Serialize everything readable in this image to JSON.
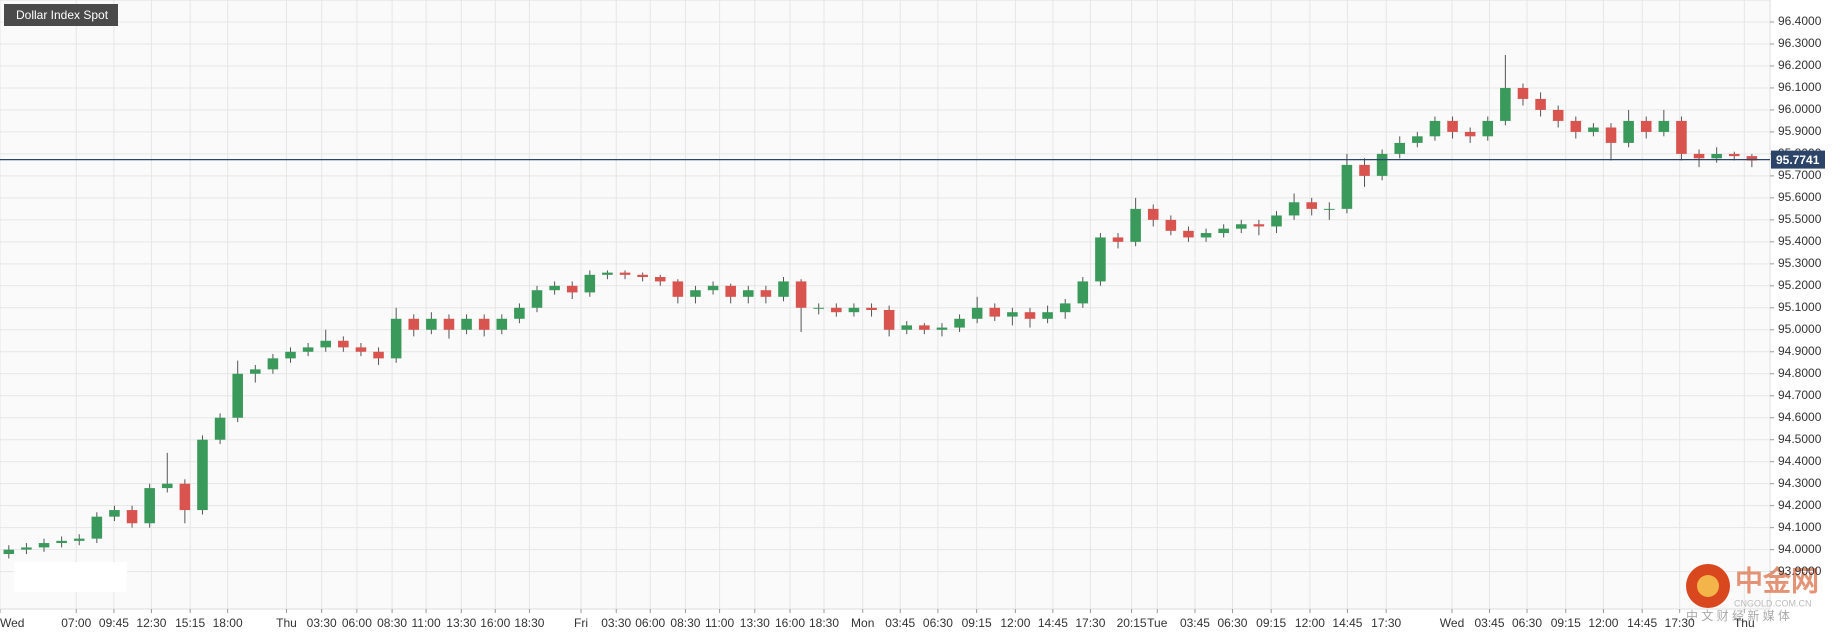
{
  "chart_data": {
    "type": "candlestick",
    "title": "Dollar Index Spot",
    "up_color": "#3a9a5b",
    "down_color": "#d9534f",
    "grid": true,
    "last_price": 95.7741,
    "last_price_color": "#2b4468",
    "xlim": [
      0,
      100.53
    ],
    "ylim": [
      93.73,
      96.5
    ],
    "xticks": [
      {
        "value": 0,
        "label": "Wed"
      },
      {
        "value": 4.33,
        "label": "07:00"
      },
      {
        "value": 6.47,
        "label": "09:45"
      },
      {
        "value": 8.6,
        "label": "12:30"
      },
      {
        "value": 10.8,
        "label": "15:15"
      },
      {
        "value": 12.93,
        "label": "18:00"
      },
      {
        "value": 16.27,
        "label": "Thu"
      },
      {
        "value": 18.27,
        "label": "03:30"
      },
      {
        "value": 20.27,
        "label": "06:00"
      },
      {
        "value": 22.27,
        "label": "08:30"
      },
      {
        "value": 24.2,
        "label": "11:00"
      },
      {
        "value": 26.2,
        "label": "13:30"
      },
      {
        "value": 28.13,
        "label": "16:00"
      },
      {
        "value": 30.07,
        "label": "18:30"
      },
      {
        "value": 33,
        "label": "Fri"
      },
      {
        "value": 35,
        "label": "03:30"
      },
      {
        "value": 36.93,
        "label": "06:00"
      },
      {
        "value": 38.93,
        "label": "08:30"
      },
      {
        "value": 40.87,
        "label": "11:00"
      },
      {
        "value": 42.87,
        "label": "13:30"
      },
      {
        "value": 44.87,
        "label": "16:00"
      },
      {
        "value": 46.8,
        "label": "18:30"
      },
      {
        "value": 49,
        "label": "Mon"
      },
      {
        "value": 51.13,
        "label": "03:45"
      },
      {
        "value": 53.27,
        "label": "06:30"
      },
      {
        "value": 55.47,
        "label": "09:15"
      },
      {
        "value": 57.67,
        "label": "12:00"
      },
      {
        "value": 59.8,
        "label": "14:45"
      },
      {
        "value": 61.93,
        "label": "17:30"
      },
      {
        "value": 64.27,
        "label": "20:15"
      },
      {
        "value": 65.73,
        "label": "Tue"
      },
      {
        "value": 67.87,
        "label": "03:45"
      },
      {
        "value": 70,
        "label": "06:30"
      },
      {
        "value": 72.2,
        "label": "09:15"
      },
      {
        "value": 74.4,
        "label": "12:00"
      },
      {
        "value": 76.53,
        "label": "14:45"
      },
      {
        "value": 78.73,
        "label": "17:30"
      },
      {
        "value": 82.47,
        "label": "Wed"
      },
      {
        "value": 84.6,
        "label": "03:45"
      },
      {
        "value": 86.73,
        "label": "06:30"
      },
      {
        "value": 88.93,
        "label": "09:15"
      },
      {
        "value": 91.07,
        "label": "12:00"
      },
      {
        "value": 93.27,
        "label": "14:45"
      },
      {
        "value": 95.4,
        "label": "17:30"
      },
      {
        "value": 99.07,
        "label": "Thu"
      }
    ],
    "yticks": [
      {
        "value": 93.9,
        "label": "93.9000"
      },
      {
        "value": 94.0,
        "label": "94.0000"
      },
      {
        "value": 94.1,
        "label": "94.1000"
      },
      {
        "value": 94.2,
        "label": "94.2000"
      },
      {
        "value": 94.3,
        "label": "94.3000"
      },
      {
        "value": 94.4,
        "label": "94.4000"
      },
      {
        "value": 94.5,
        "label": "94.5000"
      },
      {
        "value": 94.6,
        "label": "94.6000"
      },
      {
        "value": 94.7,
        "label": "94.7000"
      },
      {
        "value": 94.8,
        "label": "94.8000"
      },
      {
        "value": 94.9,
        "label": "94.9000"
      },
      {
        "value": 95.0,
        "label": "95.0000"
      },
      {
        "value": 95.1,
        "label": "95.1000"
      },
      {
        "value": 95.2,
        "label": "95.2000"
      },
      {
        "value": 95.3,
        "label": "95.3000"
      },
      {
        "value": 95.4,
        "label": "95.4000"
      },
      {
        "value": 95.5,
        "label": "95.5000"
      },
      {
        "value": 95.6,
        "label": "95.6000"
      },
      {
        "value": 95.7,
        "label": "95.7000"
      },
      {
        "value": 95.8,
        "label": "95.8000"
      },
      {
        "value": 95.9,
        "label": "95.9000"
      },
      {
        "value": 96.0,
        "label": "96.0000"
      },
      {
        "value": 96.1,
        "label": "96.1000"
      },
      {
        "value": 96.2,
        "label": "96.2000"
      },
      {
        "value": 96.3,
        "label": "96.3000"
      },
      {
        "value": 96.4,
        "label": "96.4000"
      }
    ],
    "open": [
      93.98,
      94.0,
      94.01,
      94.03,
      94.04,
      94.05,
      94.15,
      94.18,
      94.12,
      94.28,
      94.3,
      94.18,
      94.5,
      94.6,
      94.8,
      94.82,
      94.87,
      94.9,
      94.92,
      94.95,
      94.92,
      94.9,
      94.87,
      95.05,
      95.0,
      95.05,
      95.0,
      95.05,
      95.0,
      95.05,
      95.1,
      95.18,
      95.2,
      95.17,
      95.25,
      95.26,
      95.25,
      95.24,
      95.22,
      95.15,
      95.18,
      95.2,
      95.15,
      95.18,
      95.15,
      95.22,
      95.1,
      95.1,
      95.08,
      95.1,
      95.09,
      95.0,
      95.02,
      95.0,
      95.01,
      95.05,
      95.1,
      95.06,
      95.08,
      95.05,
      95.08,
      95.12,
      95.22,
      95.42,
      95.4,
      95.55,
      95.5,
      95.45,
      95.42,
      95.44,
      95.46,
      95.48,
      95.47,
      95.52,
      95.58,
      95.55,
      95.55,
      95.75,
      95.7,
      95.8,
      95.85,
      95.88,
      95.95,
      95.9,
      95.88,
      95.95,
      96.1,
      96.05,
      96.0,
      95.95,
      95.9,
      95.92,
      95.85,
      95.95,
      95.9,
      95.95,
      95.8,
      95.78,
      95.8,
      95.79
    ],
    "high": [
      94.02,
      94.03,
      94.05,
      94.06,
      94.07,
      94.17,
      94.2,
      94.2,
      94.3,
      94.44,
      94.32,
      94.52,
      94.62,
      94.86,
      94.84,
      94.89,
      94.92,
      94.94,
      95.0,
      94.97,
      94.94,
      94.92,
      95.1,
      95.07,
      95.08,
      95.07,
      95.07,
      95.07,
      95.07,
      95.12,
      95.2,
      95.22,
      95.22,
      95.27,
      95.27,
      95.27,
      95.26,
      95.25,
      95.23,
      95.2,
      95.22,
      95.21,
      95.2,
      95.2,
      95.24,
      95.23,
      95.12,
      95.12,
      95.12,
      95.12,
      95.11,
      95.04,
      95.03,
      95.03,
      95.07,
      95.15,
      95.12,
      95.1,
      95.1,
      95.11,
      95.14,
      95.24,
      95.44,
      95.44,
      95.6,
      95.57,
      95.52,
      95.47,
      95.46,
      95.48,
      95.5,
      95.5,
      95.54,
      95.62,
      95.6,
      95.58,
      95.8,
      95.78,
      95.82,
      95.88,
      95.9,
      95.97,
      95.97,
      95.92,
      95.97,
      96.25,
      96.12,
      96.08,
      96.02,
      95.97,
      95.94,
      95.94,
      96.0,
      95.97,
      96.0,
      95.97,
      95.82,
      95.83,
      95.81,
      95.8
    ],
    "low": [
      93.96,
      93.98,
      93.99,
      94.01,
      94.02,
      94.03,
      94.13,
      94.1,
      94.1,
      94.26,
      94.12,
      94.16,
      94.48,
      94.58,
      94.76,
      94.8,
      94.85,
      94.88,
      94.9,
      94.9,
      94.88,
      94.84,
      94.85,
      94.97,
      94.98,
      94.96,
      94.98,
      94.97,
      94.98,
      95.03,
      95.08,
      95.16,
      95.14,
      95.15,
      95.23,
      95.23,
      95.22,
      95.2,
      95.12,
      95.12,
      95.16,
      95.12,
      95.12,
      95.12,
      95.13,
      94.99,
      95.07,
      95.06,
      95.06,
      95.06,
      94.97,
      94.98,
      94.98,
      94.97,
      94.99,
      95.03,
      95.04,
      95.02,
      95.01,
      95.03,
      95.05,
      95.1,
      95.2,
      95.37,
      95.38,
      95.47,
      95.43,
      95.4,
      95.4,
      95.42,
      95.44,
      95.43,
      95.44,
      95.5,
      95.52,
      95.5,
      95.53,
      95.65,
      95.68,
      95.78,
      95.83,
      95.86,
      95.87,
      95.85,
      95.86,
      95.93,
      96.02,
      95.97,
      95.92,
      95.87,
      95.88,
      95.77,
      95.83,
      95.87,
      95.88,
      95.77,
      95.74,
      95.76,
      95.77,
      95.74
    ],
    "close": [
      94.0,
      94.01,
      94.03,
      94.04,
      94.05,
      94.15,
      94.18,
      94.12,
      94.28,
      94.3,
      94.18,
      94.5,
      94.6,
      94.8,
      94.82,
      94.87,
      94.9,
      94.92,
      94.95,
      94.92,
      94.9,
      94.87,
      95.05,
      95.0,
      95.05,
      95.0,
      95.05,
      95.0,
      95.05,
      95.1,
      95.18,
      95.2,
      95.17,
      95.25,
      95.26,
      95.25,
      95.24,
      95.22,
      95.15,
      95.18,
      95.2,
      95.15,
      95.18,
      95.15,
      95.22,
      95.1,
      95.1,
      95.08,
      95.1,
      95.09,
      95.0,
      95.02,
      95.0,
      95.01,
      95.05,
      95.1,
      95.06,
      95.08,
      95.05,
      95.08,
      95.12,
      95.22,
      95.42,
      95.4,
      95.55,
      95.5,
      95.45,
      95.42,
      95.44,
      95.46,
      95.48,
      95.47,
      95.52,
      95.58,
      95.55,
      95.55,
      95.75,
      95.7,
      95.8,
      95.85,
      95.88,
      95.95,
      95.9,
      95.88,
      95.95,
      96.1,
      96.05,
      96.0,
      95.95,
      95.9,
      95.92,
      95.85,
      95.95,
      95.9,
      95.95,
      95.8,
      95.78,
      95.8,
      95.79,
      95.77
    ]
  },
  "watermark": {
    "logo": "中金网",
    "domain": "CNGOLD.COM.CN",
    "tagline": "中 文 财 经 新 媒 体"
  }
}
